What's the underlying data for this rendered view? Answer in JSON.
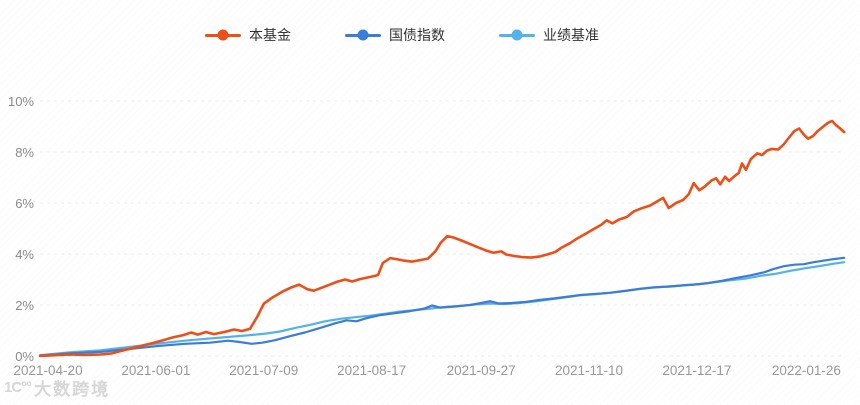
{
  "legend": {
    "items": [
      {
        "label": "本基金",
        "color": "#ee4f17"
      },
      {
        "label": "国债指数",
        "color": "#3b7dd8"
      },
      {
        "label": "业绩基准",
        "color": "#55b2ea"
      }
    ]
  },
  "watermark": {
    "logo": "1C°°",
    "text": "大数跨境"
  },
  "colors": {
    "fund": "#ee4f17",
    "bond_index": "#3b7dd8",
    "benchmark": "#55b2ea",
    "grid": "#ececec",
    "axis_text": "#999999"
  },
  "chart_data": {
    "type": "line",
    "title": "",
    "xlabel": "",
    "ylabel": "",
    "ylim": [
      0,
      10
    ],
    "grid": true,
    "legend_position": "top",
    "y_tick_labels": [
      "0%",
      "2%",
      "4%",
      "6%",
      "8%",
      "10%"
    ],
    "y_tick_values": [
      0,
      2,
      4,
      6,
      8,
      10
    ],
    "x_tick_labels": [
      "2021-04-20",
      "2021-06-01",
      "2021-07-09",
      "2021-08-17",
      "2021-09-27",
      "2021-11-10",
      "2021-12-17",
      "2022-01-26"
    ],
    "x_tick_positions_pct": [
      1.0,
      14.4,
      27.8,
      41.2,
      54.8,
      68.2,
      81.6,
      95.2
    ],
    "unit": "%",
    "series": [
      {
        "name": "本基金",
        "color": "#ee4f17",
        "points": [
          [
            0.0,
            0.0
          ],
          [
            1.9,
            0.03
          ],
          [
            3.7,
            0.06
          ],
          [
            5.6,
            0.04
          ],
          [
            7.5,
            0.06
          ],
          [
            8.9,
            0.1
          ],
          [
            10.6,
            0.24
          ],
          [
            12.4,
            0.38
          ],
          [
            13.9,
            0.5
          ],
          [
            15.3,
            0.62
          ],
          [
            16.5,
            0.73
          ],
          [
            17.8,
            0.82
          ],
          [
            18.8,
            0.92
          ],
          [
            19.6,
            0.84
          ],
          [
            20.6,
            0.94
          ],
          [
            21.6,
            0.86
          ],
          [
            22.9,
            0.94
          ],
          [
            24.1,
            1.04
          ],
          [
            25.1,
            0.98
          ],
          [
            26.1,
            1.07
          ],
          [
            27.0,
            1.55
          ],
          [
            27.8,
            2.05
          ],
          [
            28.8,
            2.28
          ],
          [
            30.1,
            2.52
          ],
          [
            31.3,
            2.7
          ],
          [
            32.2,
            2.8
          ],
          [
            33.2,
            2.62
          ],
          [
            34.0,
            2.56
          ],
          [
            35.0,
            2.68
          ],
          [
            36.0,
            2.8
          ],
          [
            37.0,
            2.92
          ],
          [
            37.9,
            3.0
          ],
          [
            38.8,
            2.92
          ],
          [
            39.8,
            3.02
          ],
          [
            40.7,
            3.08
          ],
          [
            41.6,
            3.14
          ],
          [
            42.0,
            3.18
          ],
          [
            42.6,
            3.65
          ],
          [
            43.5,
            3.84
          ],
          [
            44.3,
            3.8
          ],
          [
            45.2,
            3.74
          ],
          [
            46.2,
            3.7
          ],
          [
            47.2,
            3.76
          ],
          [
            48.2,
            3.82
          ],
          [
            49.1,
            4.1
          ],
          [
            49.8,
            4.45
          ],
          [
            50.6,
            4.7
          ],
          [
            51.3,
            4.65
          ],
          [
            52.2,
            4.55
          ],
          [
            53.2,
            4.42
          ],
          [
            54.3,
            4.28
          ],
          [
            55.3,
            4.15
          ],
          [
            56.3,
            4.05
          ],
          [
            57.3,
            4.1
          ],
          [
            57.9,
            3.98
          ],
          [
            58.9,
            3.92
          ],
          [
            59.9,
            3.88
          ],
          [
            61.0,
            3.86
          ],
          [
            62.0,
            3.9
          ],
          [
            63.0,
            3.98
          ],
          [
            64.0,
            4.08
          ],
          [
            64.8,
            4.25
          ],
          [
            65.8,
            4.42
          ],
          [
            66.8,
            4.62
          ],
          [
            67.8,
            4.8
          ],
          [
            68.8,
            4.98
          ],
          [
            69.7,
            5.14
          ],
          [
            70.4,
            5.32
          ],
          [
            71.1,
            5.2
          ],
          [
            71.9,
            5.35
          ],
          [
            72.9,
            5.45
          ],
          [
            73.8,
            5.68
          ],
          [
            74.8,
            5.8
          ],
          [
            75.8,
            5.9
          ],
          [
            76.6,
            6.05
          ],
          [
            77.4,
            6.2
          ],
          [
            78.1,
            5.8
          ],
          [
            79.0,
            6.0
          ],
          [
            79.9,
            6.12
          ],
          [
            80.6,
            6.35
          ],
          [
            81.2,
            6.78
          ],
          [
            81.9,
            6.5
          ],
          [
            82.6,
            6.65
          ],
          [
            83.4,
            6.88
          ],
          [
            84.0,
            6.97
          ],
          [
            84.5,
            6.73
          ],
          [
            85.1,
            7.03
          ],
          [
            85.6,
            6.86
          ],
          [
            86.2,
            7.03
          ],
          [
            86.8,
            7.18
          ],
          [
            87.2,
            7.55
          ],
          [
            87.7,
            7.3
          ],
          [
            88.3,
            7.72
          ],
          [
            89.1,
            7.95
          ],
          [
            89.7,
            7.88
          ],
          [
            90.3,
            8.05
          ],
          [
            90.9,
            8.12
          ],
          [
            91.7,
            8.1
          ],
          [
            92.4,
            8.3
          ],
          [
            93.0,
            8.55
          ],
          [
            93.7,
            8.82
          ],
          [
            94.3,
            8.92
          ],
          [
            94.9,
            8.68
          ],
          [
            95.4,
            8.52
          ],
          [
            96.0,
            8.62
          ],
          [
            96.6,
            8.82
          ],
          [
            97.3,
            9.0
          ],
          [
            97.9,
            9.15
          ],
          [
            98.4,
            9.22
          ],
          [
            98.9,
            9.05
          ],
          [
            99.4,
            8.92
          ],
          [
            99.9,
            8.78
          ]
        ]
      },
      {
        "name": "国债指数",
        "color": "#3b7dd8",
        "points": [
          [
            0.0,
            0.02
          ],
          [
            3.7,
            0.1
          ],
          [
            7.5,
            0.16
          ],
          [
            11.2,
            0.28
          ],
          [
            14.9,
            0.4
          ],
          [
            18.0,
            0.48
          ],
          [
            21.1,
            0.52
          ],
          [
            23.4,
            0.6
          ],
          [
            24.8,
            0.55
          ],
          [
            26.3,
            0.48
          ],
          [
            27.6,
            0.52
          ],
          [
            29.2,
            0.62
          ],
          [
            31.1,
            0.78
          ],
          [
            32.9,
            0.92
          ],
          [
            34.8,
            1.1
          ],
          [
            36.6,
            1.28
          ],
          [
            38.1,
            1.4
          ],
          [
            39.3,
            1.36
          ],
          [
            40.5,
            1.48
          ],
          [
            42.2,
            1.6
          ],
          [
            44.1,
            1.68
          ],
          [
            46.0,
            1.76
          ],
          [
            47.7,
            1.86
          ],
          [
            48.7,
            1.98
          ],
          [
            49.7,
            1.9
          ],
          [
            51.6,
            1.94
          ],
          [
            53.4,
            2.0
          ],
          [
            54.8,
            2.08
          ],
          [
            55.9,
            2.15
          ],
          [
            57.0,
            2.06
          ],
          [
            58.6,
            2.08
          ],
          [
            60.4,
            2.12
          ],
          [
            62.1,
            2.2
          ],
          [
            63.9,
            2.26
          ],
          [
            65.6,
            2.33
          ],
          [
            67.3,
            2.4
          ],
          [
            69.1,
            2.44
          ],
          [
            70.8,
            2.48
          ],
          [
            72.5,
            2.55
          ],
          [
            74.3,
            2.62
          ],
          [
            76.0,
            2.68
          ],
          [
            77.8,
            2.72
          ],
          [
            79.5,
            2.76
          ],
          [
            81.2,
            2.8
          ],
          [
            83.0,
            2.86
          ],
          [
            84.7,
            2.95
          ],
          [
            86.5,
            3.06
          ],
          [
            88.2,
            3.16
          ],
          [
            89.9,
            3.28
          ],
          [
            91.2,
            3.42
          ],
          [
            92.4,
            3.52
          ],
          [
            93.7,
            3.58
          ],
          [
            94.9,
            3.6
          ],
          [
            96.1,
            3.68
          ],
          [
            97.4,
            3.74
          ],
          [
            98.6,
            3.8
          ],
          [
            99.9,
            3.85
          ]
        ]
      },
      {
        "name": "业绩基准",
        "color": "#55b2ea",
        "points": [
          [
            0.0,
            0.03
          ],
          [
            3.7,
            0.14
          ],
          [
            7.5,
            0.22
          ],
          [
            11.2,
            0.36
          ],
          [
            14.9,
            0.5
          ],
          [
            18.6,
            0.62
          ],
          [
            22.4,
            0.72
          ],
          [
            26.1,
            0.82
          ],
          [
            28.0,
            0.88
          ],
          [
            29.8,
            0.96
          ],
          [
            31.7,
            1.1
          ],
          [
            33.5,
            1.22
          ],
          [
            35.4,
            1.36
          ],
          [
            37.3,
            1.46
          ],
          [
            39.1,
            1.52
          ],
          [
            41.0,
            1.58
          ],
          [
            42.9,
            1.66
          ],
          [
            44.7,
            1.74
          ],
          [
            46.6,
            1.8
          ],
          [
            48.4,
            1.86
          ],
          [
            50.3,
            1.92
          ],
          [
            52.2,
            1.97
          ],
          [
            54.0,
            2.02
          ],
          [
            55.9,
            2.06
          ],
          [
            57.8,
            2.04
          ],
          [
            59.6,
            2.08
          ],
          [
            61.5,
            2.14
          ],
          [
            63.4,
            2.22
          ],
          [
            65.2,
            2.3
          ],
          [
            67.1,
            2.38
          ],
          [
            68.9,
            2.42
          ],
          [
            70.8,
            2.48
          ],
          [
            72.7,
            2.55
          ],
          [
            74.5,
            2.64
          ],
          [
            76.4,
            2.7
          ],
          [
            78.3,
            2.72
          ],
          [
            80.1,
            2.78
          ],
          [
            82.0,
            2.82
          ],
          [
            83.9,
            2.9
          ],
          [
            85.7,
            2.97
          ],
          [
            87.6,
            3.03
          ],
          [
            89.4,
            3.14
          ],
          [
            91.3,
            3.22
          ],
          [
            93.2,
            3.34
          ],
          [
            95.0,
            3.44
          ],
          [
            96.9,
            3.53
          ],
          [
            98.6,
            3.62
          ],
          [
            99.9,
            3.68
          ]
        ]
      }
    ]
  }
}
